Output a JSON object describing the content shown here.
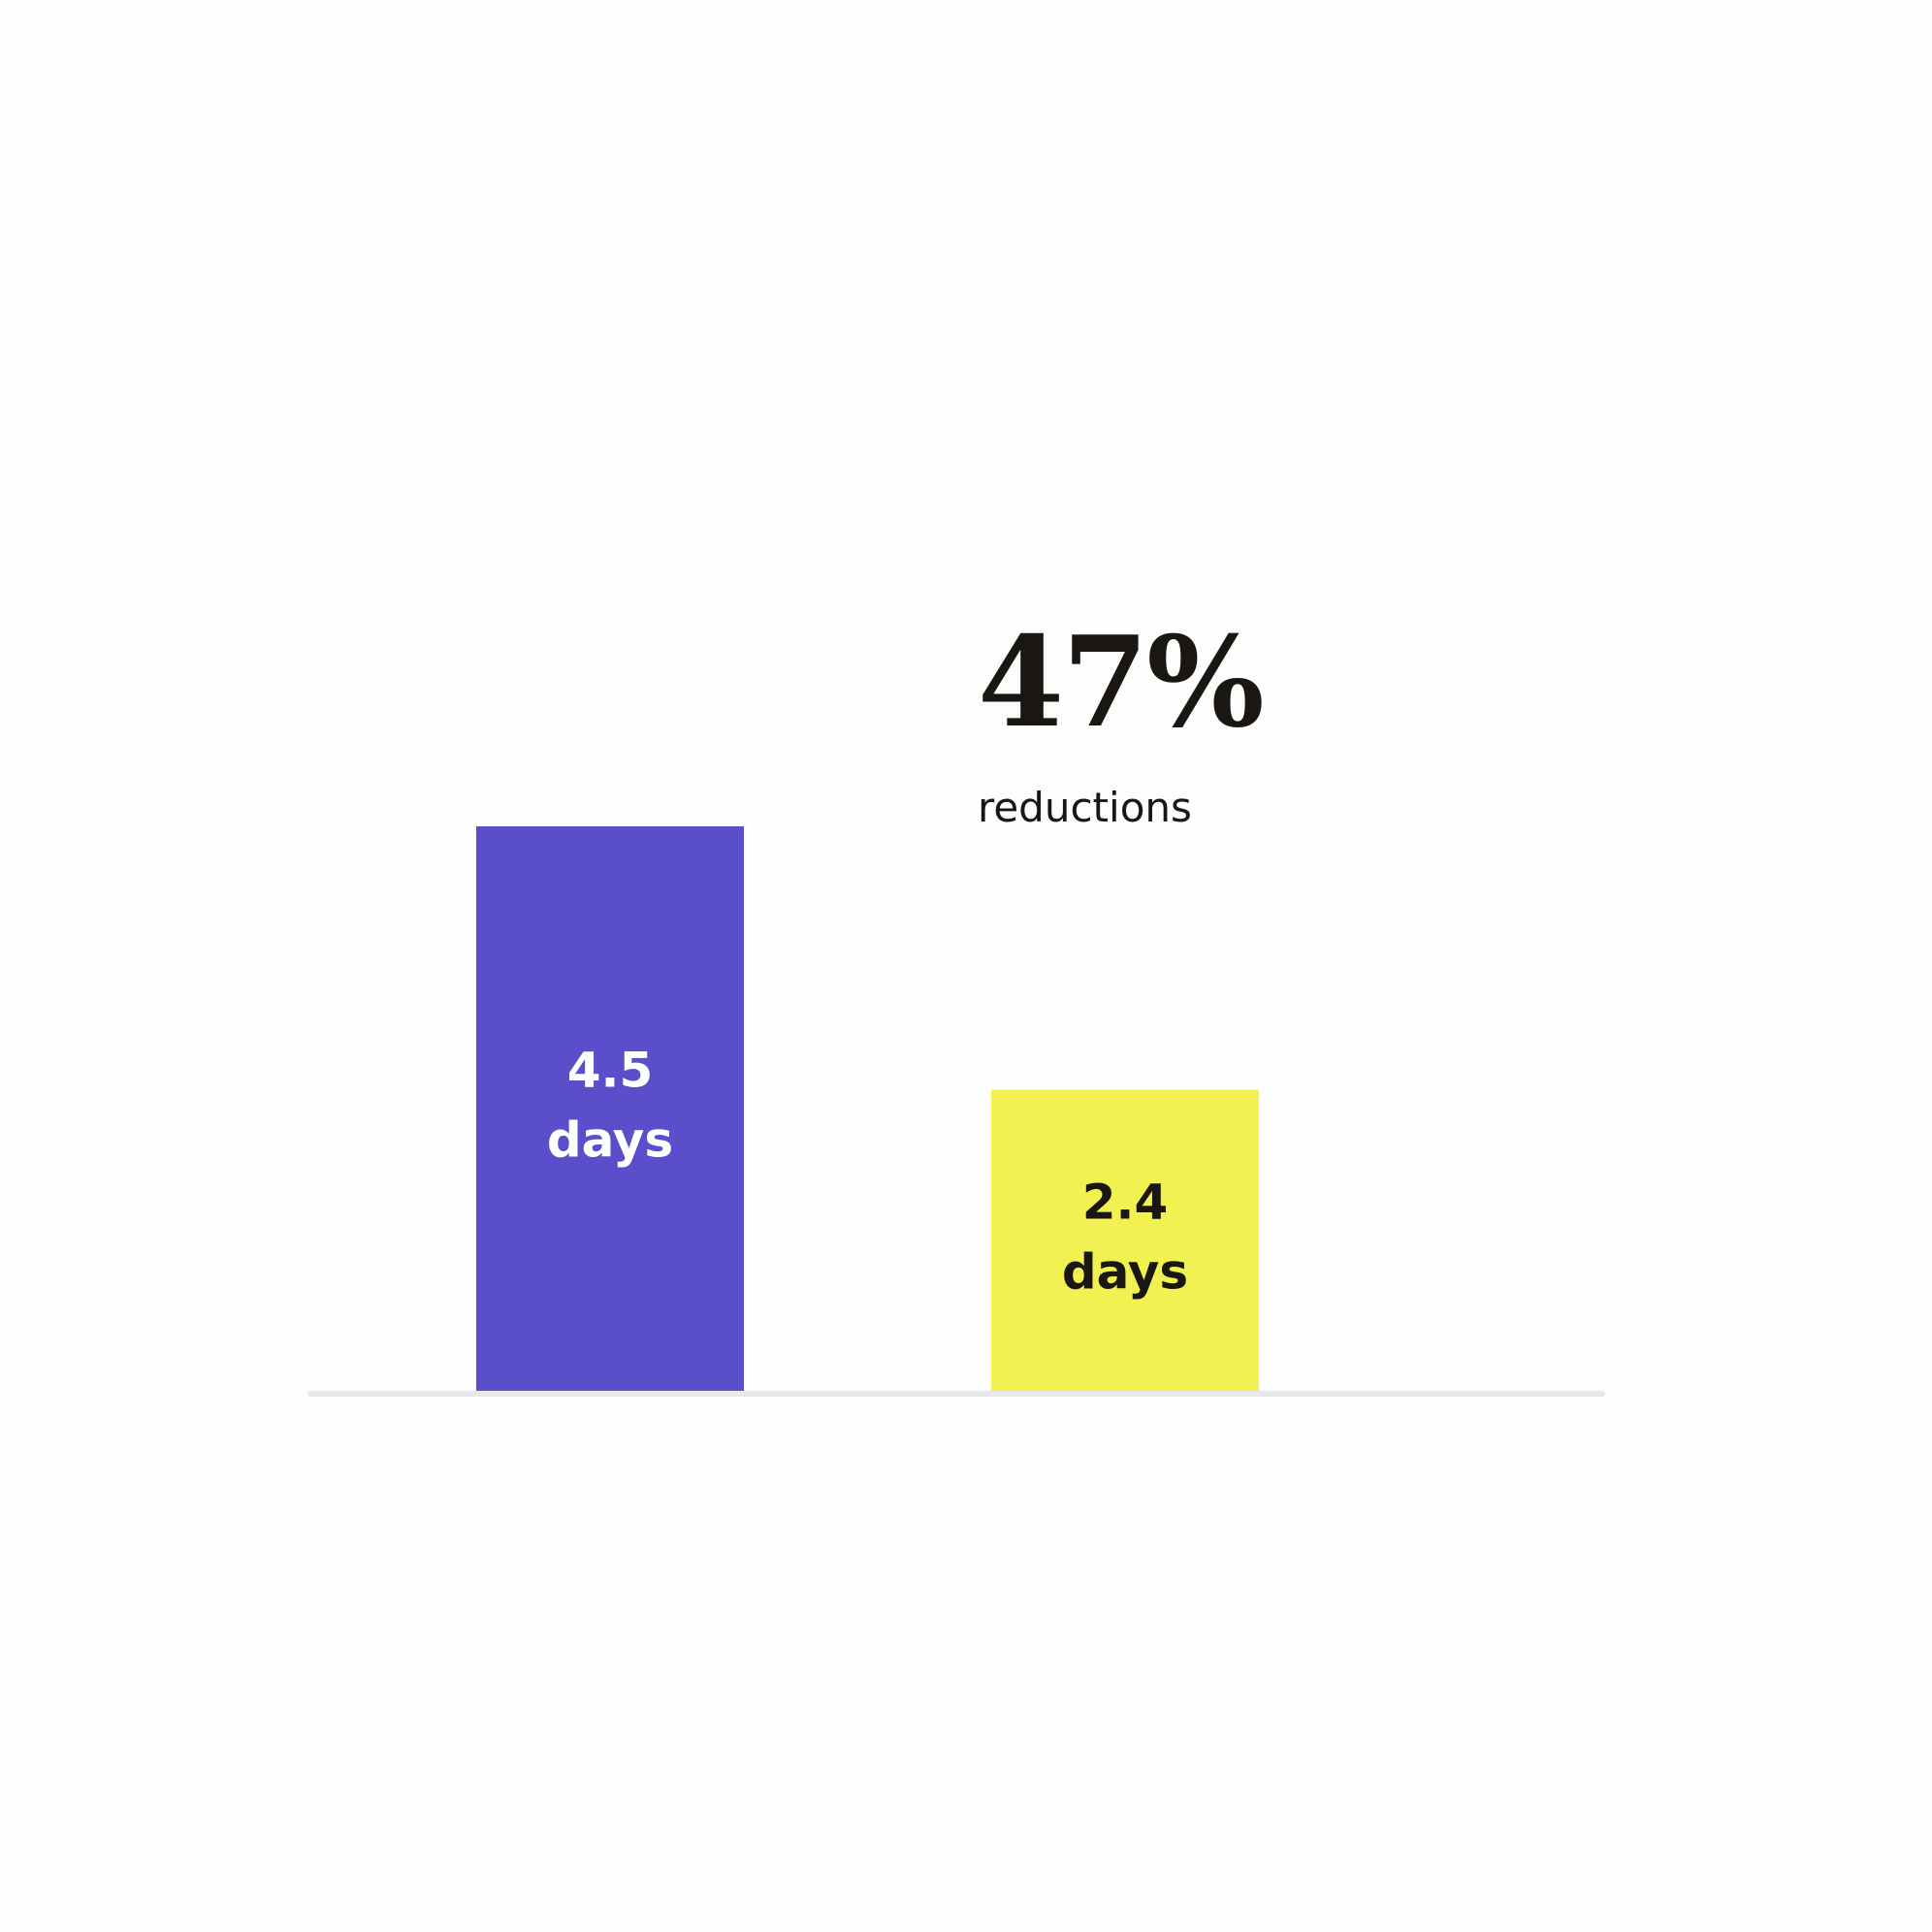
{
  "colors": {
    "background": "#fdfdfd",
    "baseline": "#e8e8e8",
    "text_dark": "#1a1713",
    "text_light": "#ffffff"
  },
  "callout": {
    "value": "47%",
    "caption": "reductions"
  },
  "chart_data": {
    "type": "bar",
    "categories": [
      "",
      ""
    ],
    "values": [
      4.5,
      2.4
    ],
    "data_labels": [
      [
        "4.5",
        "days"
      ],
      [
        "2.4",
        "days"
      ]
    ],
    "bar_colors": [
      "#5a4ecb",
      "#f2f152"
    ],
    "label_colors": [
      "#ffffff",
      "#1a1713"
    ],
    "ylim": [
      0,
      4.5
    ],
    "grid": false,
    "title": "",
    "xlabel": "",
    "ylabel": ""
  }
}
